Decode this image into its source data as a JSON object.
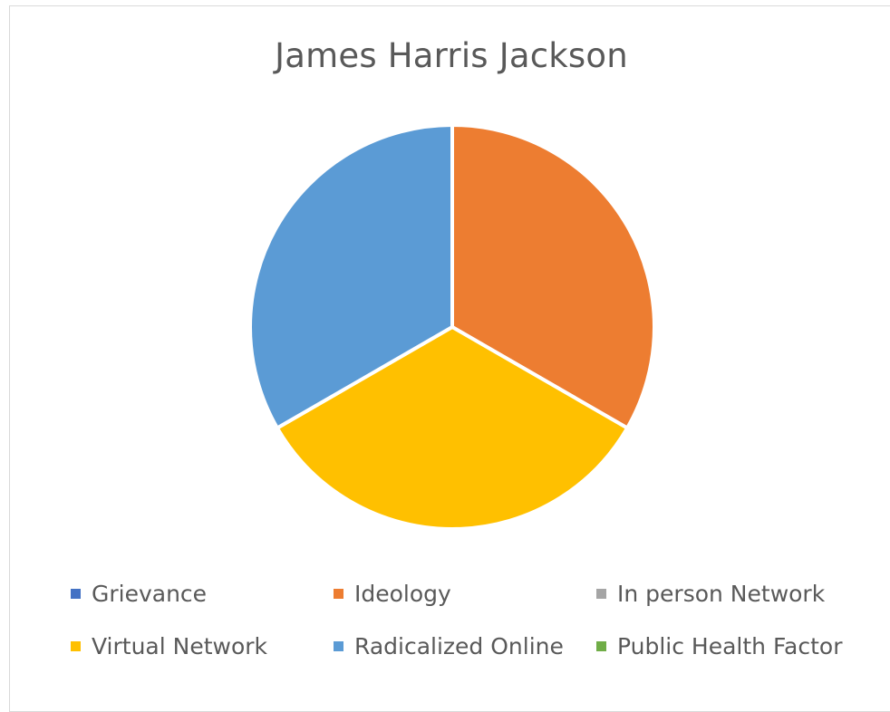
{
  "chart_data": {
    "type": "pie",
    "title": "James Harris Jackson",
    "categories": [
      "Grievance",
      "Ideology",
      "In person Network",
      "Virtual Network",
      "Radicalized Online",
      "Public Health Factor"
    ],
    "values": [
      0,
      1,
      0,
      1,
      1,
      0
    ],
    "colors": [
      "#4472C4",
      "#ED7D31",
      "#A5A5A5",
      "#FFC000",
      "#5B9BD5",
      "#70AD47"
    ],
    "legend_position": "bottom"
  }
}
